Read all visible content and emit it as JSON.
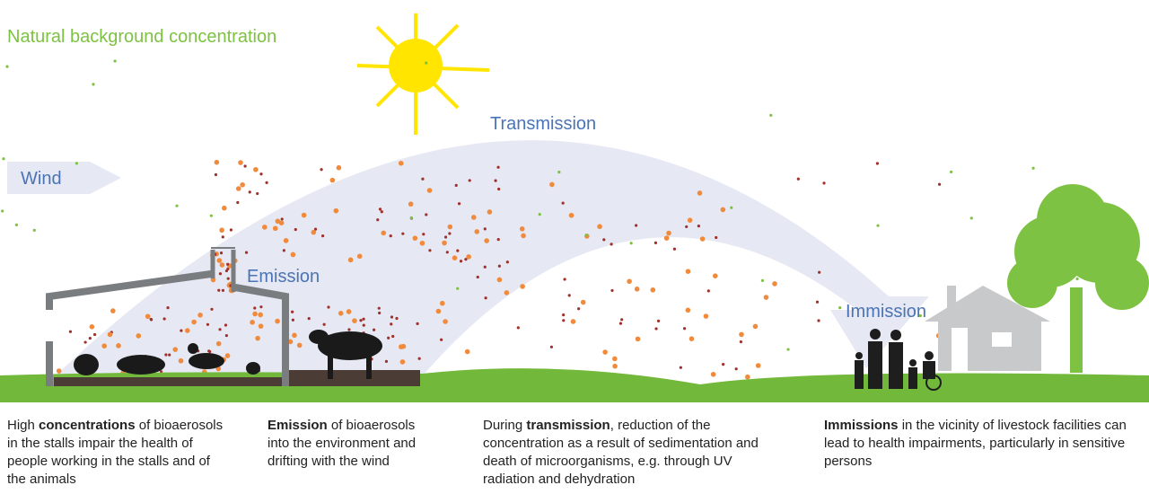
{
  "labels": {
    "background": "Natural background concentration",
    "wind": "Wind",
    "transmission": "Transmission",
    "emission": "Emission",
    "immission": "Immission"
  },
  "captions": [
    {
      "parts": [
        {
          "text": "High ",
          "bold": false
        },
        {
          "text": "concentrations",
          "bold": true
        },
        {
          "text": " of bioaerosols in the stalls impair the health of people working in the stalls and of the animals",
          "bold": false
        }
      ]
    },
    {
      "parts": [
        {
          "text": "Emission",
          "bold": true
        },
        {
          "text": " of bioaerosols into the environment and drifting with the wind",
          "bold": false
        }
      ]
    },
    {
      "parts": [
        {
          "text": "During ",
          "bold": false
        },
        {
          "text": "transmission",
          "bold": true
        },
        {
          "text": ", reduction of the concentration as a result of sedimentation and death of microorganisms, e.g. through UV radiation and dehydration",
          "bold": false
        }
      ]
    },
    {
      "parts": [
        {
          "text": "Immissions",
          "bold": true
        },
        {
          "text": " in the vicinity of livestock facilities can lead to health impairments, particularly in sensitive persons",
          "bold": false
        }
      ]
    }
  ]
}
